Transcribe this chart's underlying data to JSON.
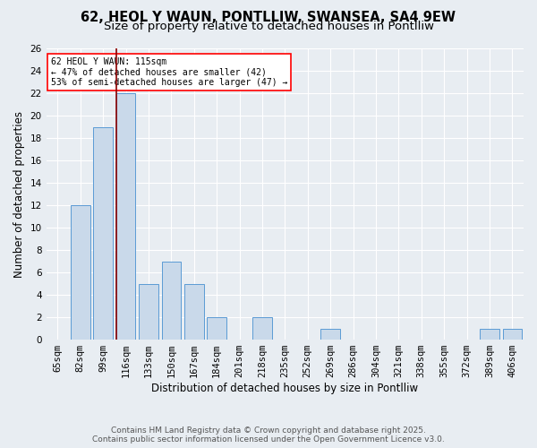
{
  "title1": "62, HEOL Y WAUN, PONTLLIW, SWANSEA, SA4 9EW",
  "title2": "Size of property relative to detached houses in Pontlliw",
  "xlabel": "Distribution of detached houses by size in Pontlliw",
  "ylabel": "Number of detached properties",
  "categories": [
    "65sqm",
    "82sqm",
    "99sqm",
    "116sqm",
    "133sqm",
    "150sqm",
    "167sqm",
    "184sqm",
    "201sqm",
    "218sqm",
    "235sqm",
    "252sqm",
    "269sqm",
    "286sqm",
    "304sqm",
    "321sqm",
    "338sqm",
    "355sqm",
    "372sqm",
    "389sqm",
    "406sqm"
  ],
  "values": [
    0,
    12,
    19,
    22,
    5,
    7,
    5,
    2,
    0,
    2,
    0,
    0,
    1,
    0,
    0,
    0,
    0,
    0,
    0,
    1,
    1
  ],
  "bar_color": "#c9d9ea",
  "bar_edge_color": "#5b9bd5",
  "red_line_index": 3,
  "annotation_line1": "62 HEOL Y WAUN: 115sqm",
  "annotation_line2": "← 47% of detached houses are smaller (42)",
  "annotation_line3": "53% of semi-detached houses are larger (47) →",
  "ylim": [
    0,
    26
  ],
  "yticks": [
    0,
    2,
    4,
    6,
    8,
    10,
    12,
    14,
    16,
    18,
    20,
    22,
    24,
    26
  ],
  "footer1": "Contains HM Land Registry data © Crown copyright and database right 2025.",
  "footer2": "Contains public sector information licensed under the Open Government Licence v3.0.",
  "background_color": "#e8edf2",
  "grid_color": "#ffffff",
  "title_fontsize": 10.5,
  "subtitle_fontsize": 9.5,
  "axis_fontsize": 8.5,
  "tick_fontsize": 7.5,
  "footer_fontsize": 6.5
}
